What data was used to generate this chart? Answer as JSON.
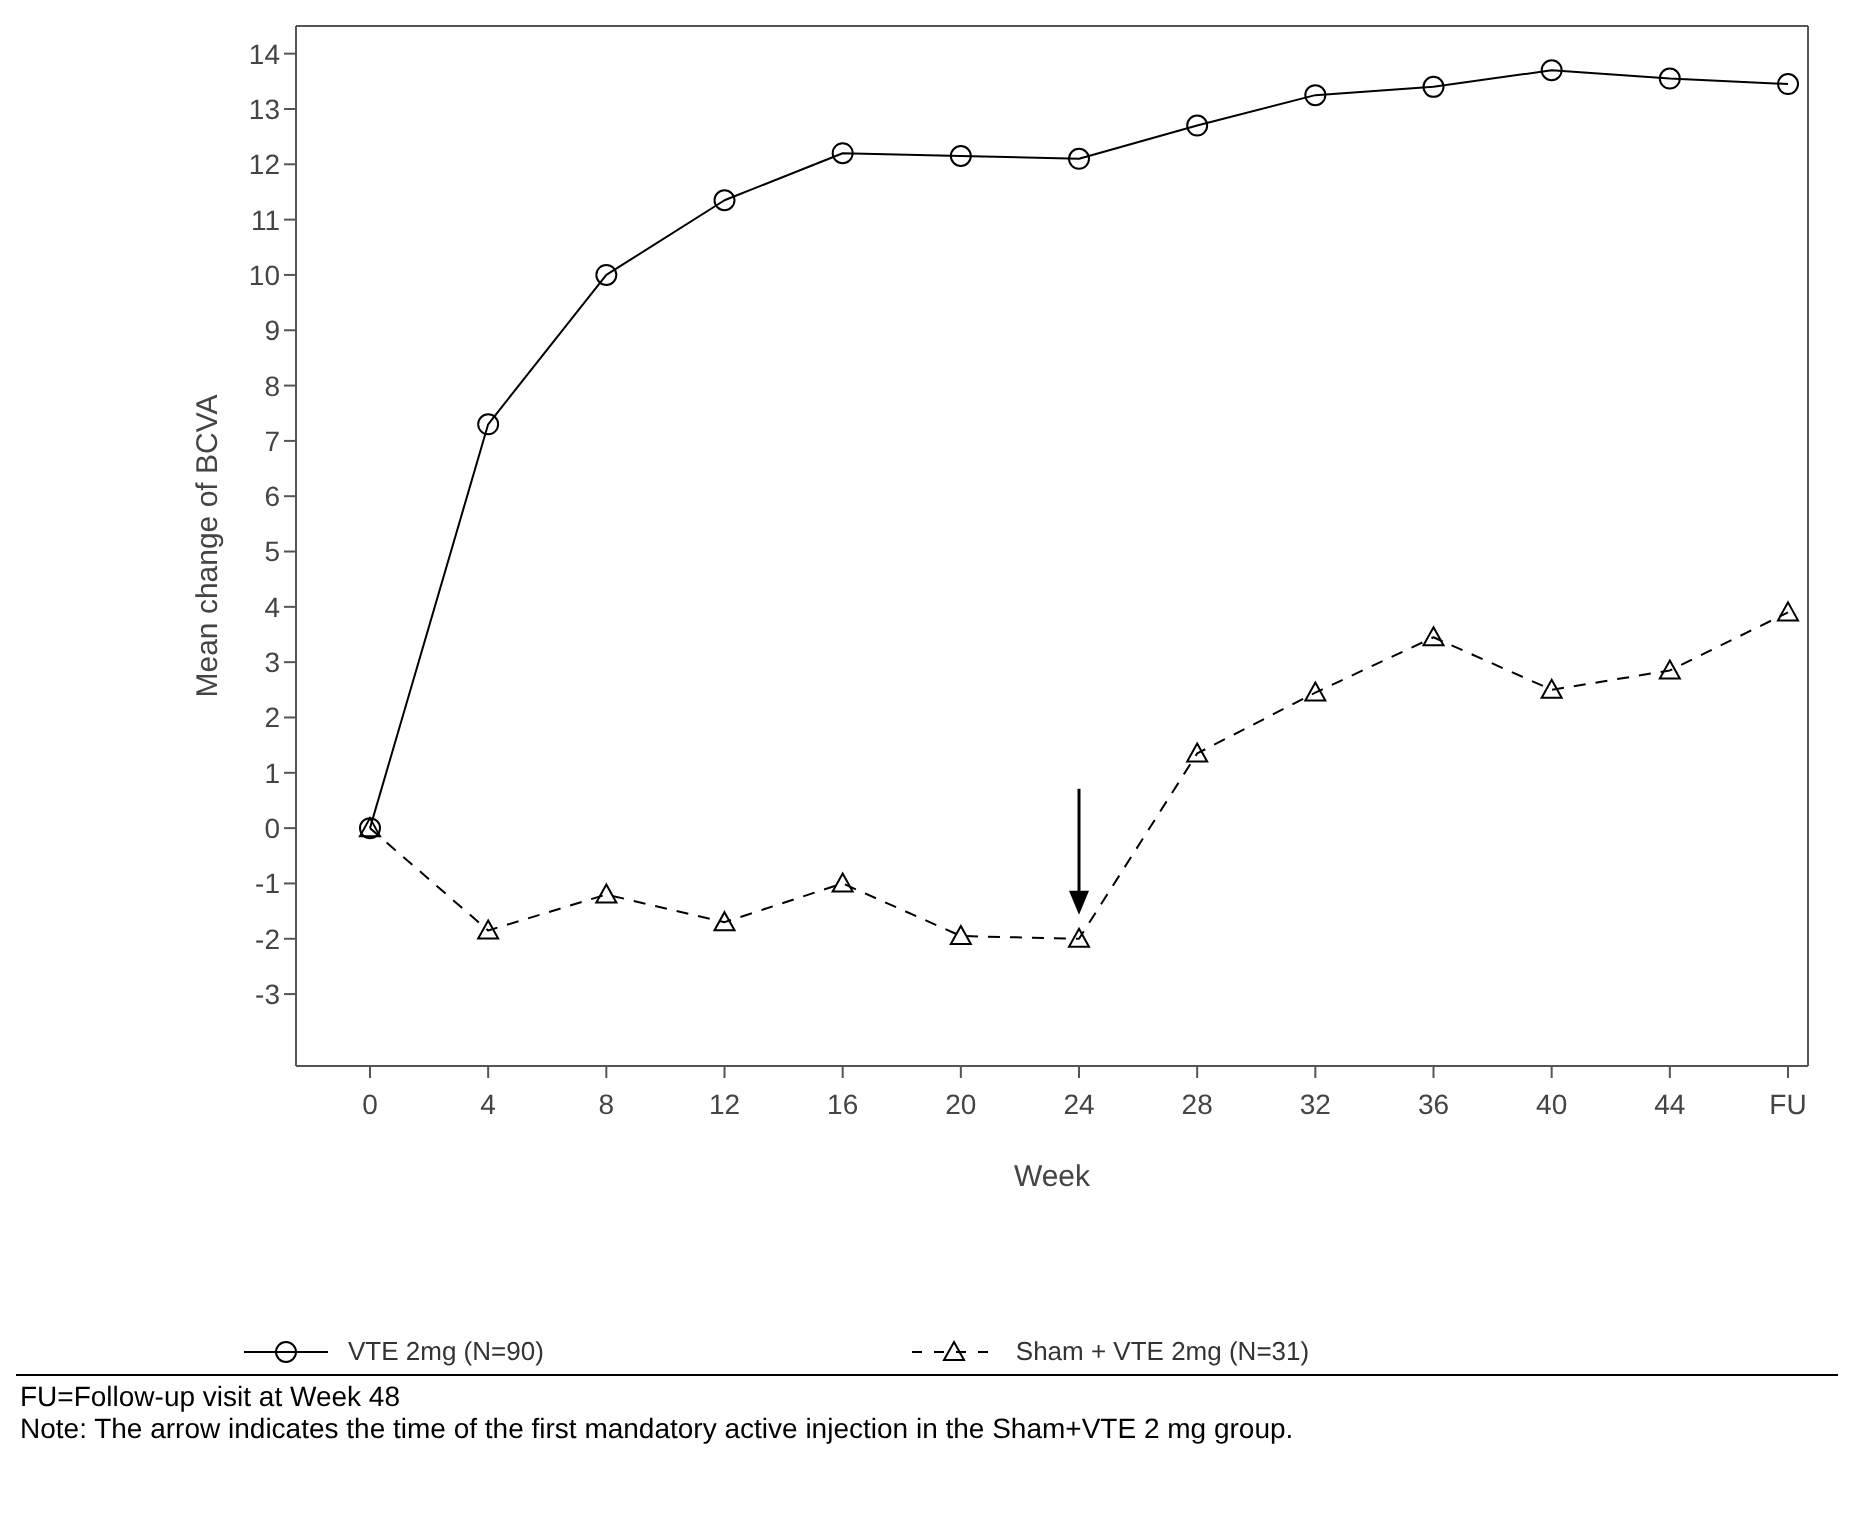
{
  "chart_data": {
    "type": "line",
    "xlabel": "Week",
    "ylabel": "Mean change of BCVA",
    "categories": [
      "0",
      "4",
      "8",
      "12",
      "16",
      "20",
      "24",
      "28",
      "32",
      "36",
      "40",
      "44",
      "FU"
    ],
    "series": [
      {
        "name": "VTE 2mg (N=90)",
        "color": "#000000",
        "marker": "circle",
        "line_style": "solid",
        "values": [
          0,
          7.3,
          10.0,
          11.35,
          12.2,
          12.15,
          12.1,
          12.7,
          13.25,
          13.4,
          13.7,
          13.55,
          13.45
        ]
      },
      {
        "name": "Sham + VTE 2mg (N=31)",
        "color": "#000000",
        "marker": "triangle",
        "line_style": "dashed",
        "values": [
          0,
          -1.85,
          -1.2,
          -1.7,
          -1.0,
          -1.95,
          -2.0,
          1.35,
          2.45,
          3.45,
          2.5,
          2.85,
          3.9
        ]
      }
    ],
    "ylim": [
      -4.3,
      14.5
    ],
    "yticks": [
      -3,
      -2,
      -1,
      0,
      1,
      2,
      3,
      4,
      5,
      6,
      7,
      8,
      9,
      10,
      11,
      12,
      13,
      14
    ],
    "grid": false,
    "legend": "bottom",
    "annotations": [
      "FU=Follow-up visit at Week 48",
      "Note: The arrow indicates the time of the first mandatory active injection in the Sham+VTE 2 mg group."
    ]
  }
}
